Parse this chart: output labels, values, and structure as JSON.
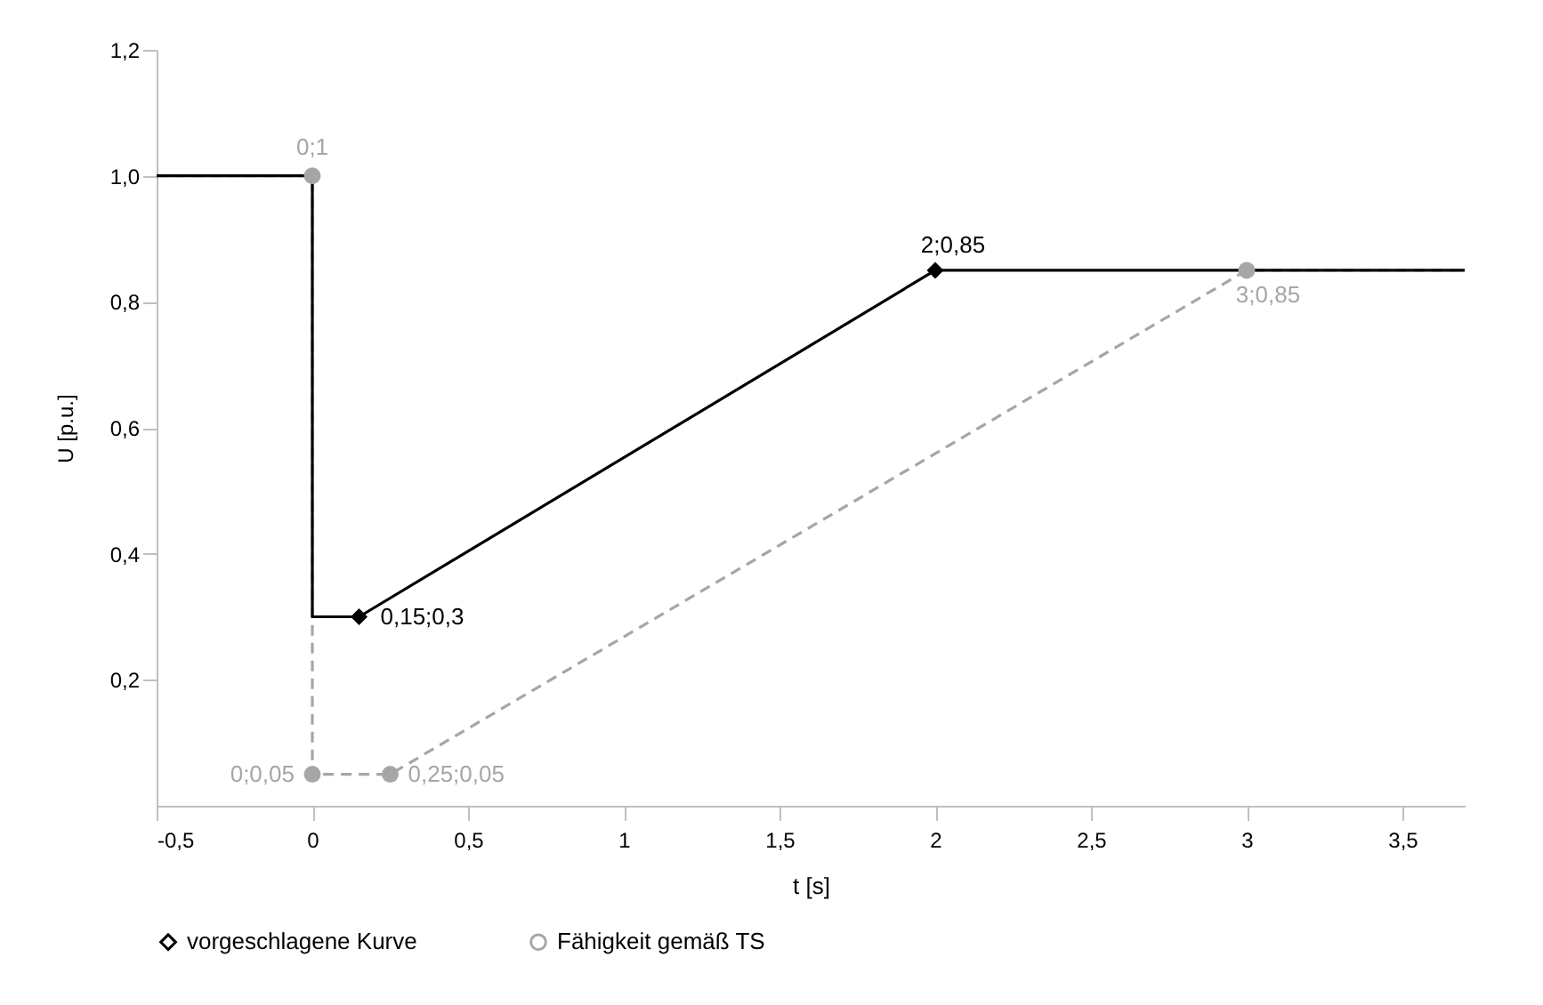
{
  "chart_data": {
    "type": "line",
    "xlabel": "t [s]",
    "ylabel": "U [p.u.]",
    "xlim": [
      -0.5,
      3.7
    ],
    "ylim": [
      0,
      1.2
    ],
    "xticks": [
      {
        "value": -0.5,
        "label": "-0,5"
      },
      0,
      {
        "value": 0.5,
        "label": "0,5"
      },
      1,
      {
        "value": 1.5,
        "label": "1,5"
      },
      2,
      {
        "value": 2.5,
        "label": "2,5"
      },
      3,
      {
        "value": 3.5,
        "label": "3,5"
      }
    ],
    "yticks": [
      {
        "value": 0.2,
        "label": "0,2"
      },
      {
        "value": 0.4,
        "label": "0,4"
      },
      {
        "value": 0.6,
        "label": "0,6"
      },
      {
        "value": 0.8,
        "label": "0,8"
      },
      {
        "value": 1,
        "label": "1,0"
      },
      {
        "value": 1.2,
        "label": "1,2"
      }
    ],
    "grid": false,
    "legend": "bottom",
    "series": [
      {
        "name": "vorgeschlagene Kurve",
        "color": "#000000",
        "line_style": "solid",
        "x": [
          -0.5,
          0,
          0,
          0.15,
          2,
          3.7
        ],
        "values": [
          1,
          1,
          0.3,
          0.3,
          0.85,
          0.85
        ]
      },
      {
        "name": "Fähigkeit gemäß TS",
        "color": "#a6a6a6",
        "line_style": "dashed",
        "x": [
          -0.5,
          0,
          0,
          0.25,
          3,
          3.7
        ],
        "values": [
          1,
          1,
          0.05,
          0.05,
          0.85,
          0.85
        ]
      },
      {
        "type": "scatter",
        "color": "#000000",
        "marker": "diamond",
        "x": [
          0.15,
          2
        ],
        "values": [
          0.3,
          0.85
        ],
        "value_labels": [
          "0,15;0,3",
          "2;0,85"
        ]
      },
      {
        "type": "scatter",
        "color": "#a6a6a6",
        "marker": "circle",
        "x": [
          0,
          0,
          0.25,
          3
        ],
        "values": [
          1,
          0.05,
          0.05,
          0.85
        ],
        "value_labels": [
          "0;1",
          "0;0,05",
          "0,25;0,05",
          "3;0,85"
        ]
      }
    ]
  }
}
